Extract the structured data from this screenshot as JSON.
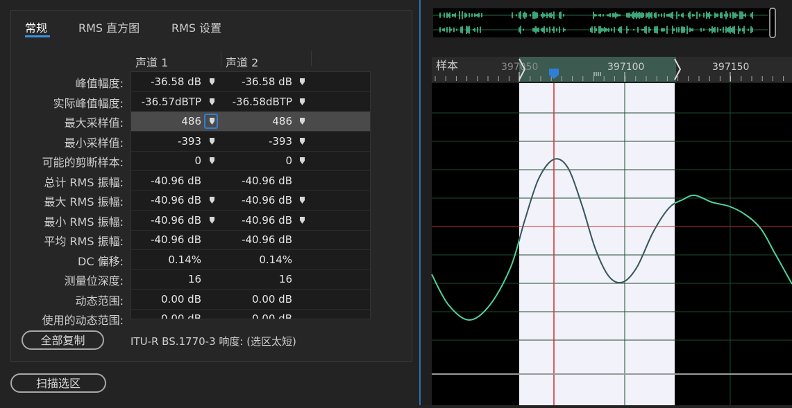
{
  "tabs": [
    "常规",
    "RMS 直方图",
    "RMS 设置"
  ],
  "columns": [
    "声道 1",
    "声道 2"
  ],
  "rows": [
    {
      "label": "峰值幅度:",
      "ch1": "-36.58 dB",
      "ch2": "-36.58 dB",
      "pin": true
    },
    {
      "label": "实际峰值幅度:",
      "ch1": "-36.57dBTP",
      "ch2": "-36.58dBTP",
      "pin": true
    },
    {
      "label": "最大采样值:",
      "ch1": "486",
      "ch2": "486",
      "pin": true,
      "selected": true
    },
    {
      "label": "最小采样值:",
      "ch1": "-393",
      "ch2": "-393",
      "pin": true
    },
    {
      "label": "可能的剪断样本:",
      "ch1": "0",
      "ch2": "0",
      "pin": true
    },
    {
      "label": "总计 RMS 振幅:",
      "ch1": "-40.96 dB",
      "ch2": "-40.96 dB",
      "pin": false
    },
    {
      "label": "最大 RMS 振幅:",
      "ch1": "-40.96 dB",
      "ch2": "-40.96 dB",
      "pin": true
    },
    {
      "label": "最小 RMS 振幅:",
      "ch1": "-40.96 dB",
      "ch2": "-40.96 dB",
      "pin": true
    },
    {
      "label": "平均 RMS 振幅:",
      "ch1": "-40.96 dB",
      "ch2": "-40.96 dB",
      "pin": false
    },
    {
      "label": "DC 偏移:",
      "ch1": "0.14%",
      "ch2": "0.14%",
      "pin": false
    },
    {
      "label": "测量位深度:",
      "ch1": "16",
      "ch2": "16",
      "pin": false
    },
    {
      "label": "动态范围:",
      "ch1": "0.00 dB",
      "ch2": "0.00 dB",
      "pin": false
    },
    {
      "label": "使用的动态范围:",
      "ch1": "0.00 dB",
      "ch2": "0.00 dB",
      "pin": false
    }
  ],
  "buttons": {
    "copy_all": "全部复制",
    "scan_selection": "扫描选区"
  },
  "loudness_note": "ITU-R BS.1770-3 响度:  (选区太短)",
  "ruler": {
    "unit_label": "样本",
    "tick_a": "397050",
    "tick_b": "397100",
    "tick_c": "397150"
  },
  "colors": {
    "accent": "#3b8fe6",
    "waveform": "#4fd39a",
    "playhead": "#d03030",
    "selection": "#f2f2fa"
  }
}
